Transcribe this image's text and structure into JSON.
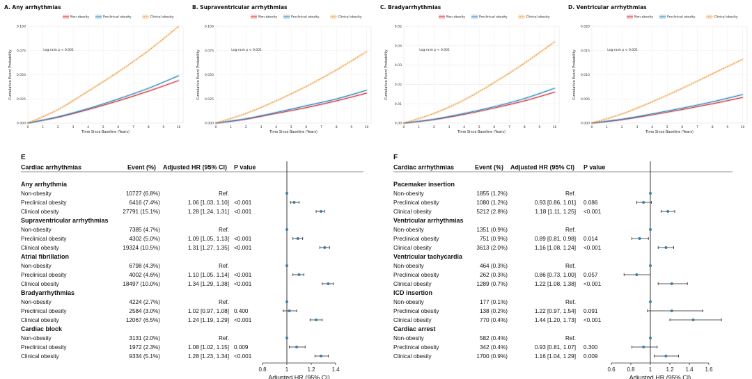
{
  "colors": {
    "non": "#d03a3a",
    "pre": "#2f89c6",
    "clin": "#f0902a",
    "forest_marker": "#3b7fa8",
    "refline": "#222222"
  },
  "km_common": {
    "legend": [
      "Non-obesity",
      "Preclinical obesity",
      "Clinical obesity"
    ],
    "xlabel": "Time Since Baseline (Years)",
    "ylabel": "Cumulative Event Probability",
    "logrank": "Log-rank p < 0.001",
    "x_ticks": [
      "0",
      "1",
      "2",
      "3",
      "4",
      "5",
      "6",
      "7",
      "8",
      "9",
      "10"
    ]
  },
  "chart_data": [
    {
      "type": "line",
      "title": "A. Any arrhythmias",
      "xlabel": "Time Since Baseline (Years)",
      "ylabel": "Cumulative Event Probability",
      "xlim": [
        0,
        10.3
      ],
      "ylim": [
        0,
        0.1
      ],
      "y_ticks": [
        "0.000",
        "0.025",
        "0.050",
        "0.075",
        "0.100"
      ],
      "y_tick_values": [
        0,
        0.025,
        0.05,
        0.075,
        0.1
      ],
      "x": [
        0,
        2,
        4,
        6,
        8,
        10
      ],
      "series": [
        {
          "name": "Non-obesity",
          "values": [
            0,
            0.006,
            0.014,
            0.023,
            0.033,
            0.044
          ]
        },
        {
          "name": "Preclinical obesity",
          "values": [
            0,
            0.0065,
            0.015,
            0.025,
            0.036,
            0.049
          ]
        },
        {
          "name": "Clinical obesity",
          "values": [
            0,
            0.014,
            0.033,
            0.053,
            0.075,
            0.1
          ]
        }
      ]
    },
    {
      "type": "line",
      "title": "B. Supraventricular arrhythmias",
      "xlabel": "Time Since Baseline (Years)",
      "ylabel": "Cumulative Event Probability",
      "xlim": [
        0,
        10.3
      ],
      "ylim": [
        0,
        0.1
      ],
      "y_ticks": [
        "0.000",
        "0.025",
        "0.050",
        "0.075",
        "0.100"
      ],
      "y_tick_values": [
        0,
        0.025,
        0.05,
        0.075,
        0.1
      ],
      "x": [
        0,
        2,
        4,
        6,
        8,
        10
      ],
      "series": [
        {
          "name": "Non-obesity",
          "values": [
            0,
            0.004,
            0.01,
            0.016,
            0.023,
            0.031
          ]
        },
        {
          "name": "Preclinical obesity",
          "values": [
            0,
            0.0045,
            0.011,
            0.018,
            0.025,
            0.034
          ]
        },
        {
          "name": "Clinical obesity",
          "values": [
            0,
            0.01,
            0.023,
            0.038,
            0.055,
            0.074
          ]
        }
      ]
    },
    {
      "type": "line",
      "title": "C. Bradyarrhythmias",
      "xlabel": "Time Since Baseline (Years)",
      "ylabel": "Cumulative Event Probability",
      "xlim": [
        0,
        10.3
      ],
      "ylim": [
        0,
        0.05
      ],
      "y_ticks": [
        "0.00",
        "0.01",
        "0.02",
        "0.03",
        "0.04",
        "0.05"
      ],
      "y_tick_values": [
        0,
        0.01,
        0.02,
        0.03,
        0.04,
        0.05
      ],
      "x": [
        0,
        2,
        4,
        6,
        8,
        10
      ],
      "series": [
        {
          "name": "Non-obesity",
          "values": [
            0,
            0.0018,
            0.0045,
            0.0078,
            0.0115,
            0.016
          ]
        },
        {
          "name": "Preclinical obesity",
          "values": [
            0,
            0.002,
            0.005,
            0.0085,
            0.0127,
            0.018
          ]
        },
        {
          "name": "Clinical obesity",
          "values": [
            0,
            0.005,
            0.012,
            0.021,
            0.031,
            0.042
          ]
        }
      ]
    },
    {
      "type": "line",
      "title": "D. Ventricular arrhythmias",
      "xlabel": "Time Since Baseline (Years)",
      "ylabel": "Cumulative Event Probability",
      "xlim": [
        0,
        10.3
      ],
      "ylim": [
        0,
        0.02
      ],
      "y_ticks": [
        "0.000",
        "0.005",
        "0.010",
        "0.015",
        "0.020"
      ],
      "y_tick_values": [
        0,
        0.005,
        0.01,
        0.015,
        0.02
      ],
      "x": [
        0,
        2,
        4,
        6,
        8,
        10
      ],
      "series": [
        {
          "name": "Non-obesity",
          "values": [
            0,
            0.0007,
            0.0017,
            0.0028,
            0.004,
            0.0053
          ]
        },
        {
          "name": "Preclinical obesity",
          "values": [
            0,
            0.0008,
            0.0019,
            0.0031,
            0.0044,
            0.0059
          ]
        },
        {
          "name": "Clinical obesity",
          "values": [
            0,
            0.0019,
            0.0044,
            0.0072,
            0.0102,
            0.0132
          ]
        }
      ]
    },
    {
      "type": "forest",
      "panel": "E",
      "xlabel": "Adjusted HR (95% CI)",
      "xlim": [
        0.8,
        1.4
      ],
      "x_ticks": [
        "0.8",
        "1",
        "1.2",
        "1.4"
      ],
      "x_tick_values": [
        0.8,
        1.0,
        1.2,
        1.4
      ],
      "ref": 1.0,
      "header": {
        "c1": "Cardiac arrhythmias",
        "c2": "Event (%)",
        "c3": "Adjusted HR (95% CI)",
        "c4": "P value"
      },
      "rows": [
        {
          "label": "Any arrhythmia",
          "group": true
        },
        {
          "label": "Non-obesity",
          "event": "10727 (6.8%)",
          "hr": "Ref.",
          "p": "",
          "est": 1.0,
          "lo": 1.0,
          "hi": 1.0
        },
        {
          "label": "Preclinical obesity",
          "event": "6416 (7.4%)",
          "hr": "1.06 [1.03, 1.10]",
          "p": "<0.001",
          "est": 1.06,
          "lo": 1.03,
          "hi": 1.1
        },
        {
          "label": "Clinical obesity",
          "event": "27791 (15.1%)",
          "hr": "1.28 [1.24, 1.31]",
          "p": "<0.001",
          "est": 1.28,
          "lo": 1.24,
          "hi": 1.31
        },
        {
          "label": "Supraventricular  arrhythmias",
          "group": true
        },
        {
          "label": "Non-obesity",
          "event": "7385 (4.7%)",
          "hr": "Ref.",
          "p": "",
          "est": 1.0,
          "lo": 1.0,
          "hi": 1.0
        },
        {
          "label": "Preclinical obesity",
          "event": "4302 (5.0%)",
          "hr": "1.09 [1.05, 1.13]",
          "p": "<0.001",
          "est": 1.09,
          "lo": 1.05,
          "hi": 1.13
        },
        {
          "label": "Clinical obesity",
          "event": "19324 (10.5%)",
          "hr": "1.31 [1.27, 1.35]",
          "p": "<0.001",
          "est": 1.31,
          "lo": 1.27,
          "hi": 1.35
        },
        {
          "label": "Atrial fibrillation",
          "group": true
        },
        {
          "label": "Non-obesity",
          "event": "6798 (4.3%)",
          "hr": "Ref.",
          "p": "",
          "est": 1.0,
          "lo": 1.0,
          "hi": 1.0
        },
        {
          "label": "Preclinical obesity",
          "event": "4002 (4.6%)",
          "hr": "1.10 [1.05, 1.14]",
          "p": "<0.001",
          "est": 1.1,
          "lo": 1.05,
          "hi": 1.14
        },
        {
          "label": "Clinical obesity",
          "event": "18497 (10.0%)",
          "hr": "1.34 [1.29, 1.38]",
          "p": "<0.001",
          "est": 1.34,
          "lo": 1.29,
          "hi": 1.38
        },
        {
          "label": "Bradyarrhythmias",
          "group": true
        },
        {
          "label": "Non-obesity",
          "event": "4224 (2.7%)",
          "hr": "Ref.",
          "p": "",
          "est": 1.0,
          "lo": 1.0,
          "hi": 1.0
        },
        {
          "label": "Preclinical obesity",
          "event": "2584 (3.0%)",
          "hr": "1.02 [0.97, 1.08]",
          "p": "0.400",
          "est": 1.02,
          "lo": 0.97,
          "hi": 1.08
        },
        {
          "label": "Clinical obesity",
          "event": "12067 (6.5%)",
          "hr": "1.24 [1.19, 1.29]",
          "p": "<0.001",
          "est": 1.24,
          "lo": 1.19,
          "hi": 1.29
        },
        {
          "label": "Cardiac block",
          "group": true
        },
        {
          "label": "Non-obesity",
          "event": "3131 (2.0%)",
          "hr": "Ref.",
          "p": "",
          "est": 1.0,
          "lo": 1.0,
          "hi": 1.0
        },
        {
          "label": "Preclinical obesity",
          "event": "1972 (2.3%)",
          "hr": "1.08 [1.02, 1.15]",
          "p": "0.009",
          "est": 1.08,
          "lo": 1.02,
          "hi": 1.15
        },
        {
          "label": "Clinical obesity",
          "event": "9334 (5.1%)",
          "hr": "1.28 [1.23, 1.34]",
          "p": "<0.001",
          "est": 1.28,
          "lo": 1.23,
          "hi": 1.34
        }
      ]
    },
    {
      "type": "forest",
      "panel": "F",
      "xlabel": "Adjusted HR (95% CI)",
      "xlim": [
        0.6,
        1.6
      ],
      "x_ticks": [
        "0.6",
        "0.8",
        "1",
        "1.2",
        "1.4",
        "1.6"
      ],
      "x_tick_values": [
        0.6,
        0.8,
        1.0,
        1.2,
        1.4,
        1.6
      ],
      "ref": 1.0,
      "header": {
        "c1": "Cardiac arrhythmias",
        "c2": "Event (%)",
        "c3": "Adjusted HR (95% CI)",
        "c4": "P value"
      },
      "rows": [
        {
          "label": "Pacemaker insertion",
          "group": true
        },
        {
          "label": "Non-obesity",
          "event": "1855 (1.2%)",
          "hr": "Ref.",
          "p": "",
          "est": 1.0,
          "lo": 1.0,
          "hi": 1.0
        },
        {
          "label": "Preclinical obesity",
          "event": "1080 (1.2%)",
          "hr": "0.93 [0.86, 1.01]",
          "p": "0.086",
          "est": 0.93,
          "lo": 0.86,
          "hi": 1.01
        },
        {
          "label": "Clinical obesity",
          "event": "5212 (2.8%)",
          "hr": "1.18 [1.11, 1.25]",
          "p": "<0.001",
          "est": 1.18,
          "lo": 1.11,
          "hi": 1.25
        },
        {
          "label": "Ventricular arrhythmias",
          "group": true
        },
        {
          "label": "Non-obesity",
          "event": "1351 (0.9%)",
          "hr": "Ref.",
          "p": "",
          "est": 1.0,
          "lo": 1.0,
          "hi": 1.0
        },
        {
          "label": "Preclinical obesity",
          "event": "751 (0.9%)",
          "hr": "0.89 [0.81, 0.98]",
          "p": "0.014",
          "est": 0.89,
          "lo": 0.81,
          "hi": 0.98
        },
        {
          "label": "Clinical obesity",
          "event": "3613 (2.0%)",
          "hr": "1.16 [1.08, 1.24]",
          "p": "<0.001",
          "est": 1.16,
          "lo": 1.08,
          "hi": 1.24
        },
        {
          "label": "Ventricular tachycardia",
          "group": true
        },
        {
          "label": "Non-obesity",
          "event": "464 (0.3%)",
          "hr": "Ref.",
          "p": "",
          "est": 1.0,
          "lo": 1.0,
          "hi": 1.0
        },
        {
          "label": "Preclinical obesity",
          "event": "262 (0.3%)",
          "hr": "0.86 [0.73, 1.00]",
          "p": "0.057",
          "est": 0.86,
          "lo": 0.73,
          "hi": 1.0
        },
        {
          "label": "Clinical obesity",
          "event": "1289 (0.7%)",
          "hr": "1.22 [1.08, 1.38]",
          "p": "<0.001",
          "est": 1.22,
          "lo": 1.08,
          "hi": 1.38
        },
        {
          "label": "ICD insertion",
          "group": true
        },
        {
          "label": "Non-obesity",
          "event": "177 (0.1%)",
          "hr": "Ref.",
          "p": "",
          "est": 1.0,
          "lo": 1.0,
          "hi": 1.0
        },
        {
          "label": "Preclinical obesity",
          "event": "138 (0.2%)",
          "hr": "1.22 [0.97, 1.54]",
          "p": "0.091",
          "est": 1.22,
          "lo": 0.97,
          "hi": 1.54
        },
        {
          "label": "Clinical obesity",
          "event": "770 (0.4%)",
          "hr": "1.44 [1.20, 1.73]",
          "p": "<0.001",
          "est": 1.44,
          "lo": 1.2,
          "hi": 1.73
        },
        {
          "label": "Cardiac arrest",
          "group": true
        },
        {
          "label": "Non-obesity",
          "event": "582 (0.4%)",
          "hr": "Ref.",
          "p": "",
          "est": 1.0,
          "lo": 1.0,
          "hi": 1.0
        },
        {
          "label": "Preclinical obesity",
          "event": "342 (0.4%)",
          "hr": "0.93 [0.81, 1.07]",
          "p": "0.300",
          "est": 0.93,
          "lo": 0.81,
          "hi": 1.07
        },
        {
          "label": "Clinical obesity",
          "event": "1700 (0.9%)",
          "hr": "1.16 [1.04, 1.29]",
          "p": "0.009",
          "est": 1.16,
          "lo": 1.04,
          "hi": 1.29
        }
      ]
    }
  ]
}
